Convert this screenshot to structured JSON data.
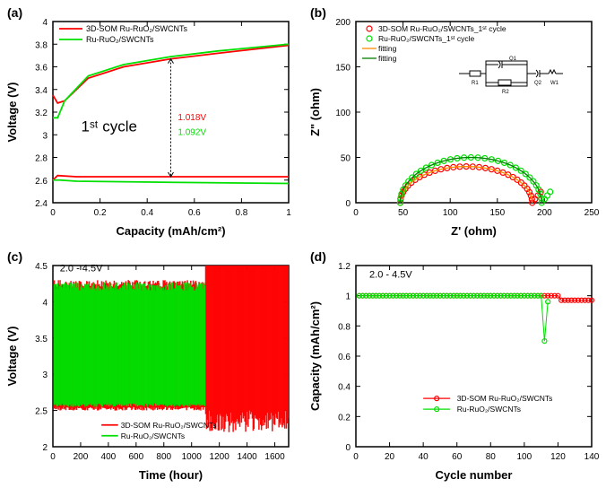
{
  "panel_a": {
    "label": "(a)",
    "type": "line",
    "title_x": "Capacity (mAh/cm²)",
    "title_y": "Voltage (V)",
    "xlim": [
      0,
      1.0
    ],
    "xtick_step": 0.2,
    "ylim": [
      2.4,
      4.0
    ],
    "ytick_step": 0.2,
    "annotation_main": "1ˢᵗ cycle",
    "annotation_red": "1.018V",
    "annotation_green": "1.092V",
    "series": [
      {
        "name": "3D-SOM Ru-RuO₂/SWCNTs",
        "color": "#ff0000",
        "segments": [
          [
            [
              0,
              2.6
            ],
            [
              0.02,
              2.64
            ],
            [
              0.1,
              2.63
            ],
            [
              0.5,
              2.63
            ],
            [
              1.0,
              2.63
            ]
          ],
          [
            [
              0,
              3.35
            ],
            [
              0.02,
              3.28
            ],
            [
              0.05,
              3.3
            ],
            [
              0.15,
              3.5
            ],
            [
              0.3,
              3.6
            ],
            [
              0.5,
              3.67
            ],
            [
              0.7,
              3.72
            ],
            [
              1.0,
              3.79
            ]
          ]
        ]
      },
      {
        "name": "Ru-RuO₂/SWCNTs",
        "color": "#00e000",
        "segments": [
          [
            [
              0,
              2.6
            ],
            [
              0.03,
              2.6
            ],
            [
              0.1,
              2.59
            ],
            [
              0.5,
              2.58
            ],
            [
              1.0,
              2.57
            ]
          ],
          [
            [
              0,
              3.15
            ],
            [
              0.02,
              3.15
            ],
            [
              0.05,
              3.3
            ],
            [
              0.15,
              3.52
            ],
            [
              0.3,
              3.62
            ],
            [
              0.5,
              3.69
            ],
            [
              0.7,
              3.74
            ],
            [
              1.0,
              3.8
            ]
          ]
        ]
      }
    ]
  },
  "panel_b": {
    "label": "(b)",
    "type": "scatter",
    "title_x": "Z' (ohm)",
    "title_y": "Z\" (ohm)",
    "xlim": [
      0,
      250
    ],
    "xtick_step": 50,
    "ylim": [
      0,
      200
    ],
    "ytick_step": 50,
    "series": [
      {
        "name": "3D-SOM Ru-RuO₂/SWCNTs_1ˢᵗ cycle",
        "color": "#ff0000",
        "marker": "circle-open",
        "arc": {
          "cx": 117,
          "cy": 0,
          "rx": 70,
          "ry": 40
        }
      },
      {
        "name": "Ru-RuO₂/SWCNTs_1ˢᵗ cycle",
        "color": "#00e000",
        "marker": "circle-open",
        "arc": {
          "cx": 122,
          "cy": 0,
          "rx": 75,
          "ry": 50
        }
      }
    ],
    "fits": [
      {
        "name": "fitting",
        "color": "#ff8c00"
      },
      {
        "name": "fitting",
        "color": "#008000"
      }
    ],
    "circuit_labels": [
      "R1",
      "Q1",
      "R2",
      "Q2",
      "W1"
    ]
  },
  "panel_c": {
    "label": "(c)",
    "type": "area",
    "title_x": "Time (hour)",
    "title_y": "Voltage (V)",
    "range_label": "2.0 - 4.5V",
    "xlim": [
      0,
      1700
    ],
    "xtick_step": 200,
    "ylim": [
      2.0,
      4.5
    ],
    "ytick_step": 0.5,
    "series": [
      {
        "name": "3D-SOM Ru-RuO₂/SWCNTs",
        "color": "#ff0000"
      },
      {
        "name": "Ru-RuO₂/SWCNTs",
        "color": "#00e000"
      }
    ]
  },
  "panel_d": {
    "label": "(d)",
    "type": "scatter-line",
    "title_x": "Cycle number",
    "title_y": "Capacity (mAh/cm²)",
    "range_label": "2.0 - 4.5V",
    "xlim": [
      0,
      140
    ],
    "xtick_step": 20,
    "ylim": [
      0,
      1.2
    ],
    "ytick_step": 0.2,
    "series": [
      {
        "name": "3D-SOM Ru-RuO₂/SWCNTs",
        "color": "#ff0000",
        "y": 1.0,
        "end": 140,
        "dip_at": null
      },
      {
        "name": "Ru-RuO₂/SWCNTs",
        "color": "#00e000",
        "y": 1.0,
        "end": 114,
        "dip_at": 113
      }
    ]
  },
  "style": {
    "axis_fontsize": 11,
    "label_fontsize": 13,
    "legend_fontsize": 9,
    "tick_fontsize": 10,
    "line_width": 1.5,
    "axis_color": "#000000",
    "bg": "#ffffff"
  }
}
